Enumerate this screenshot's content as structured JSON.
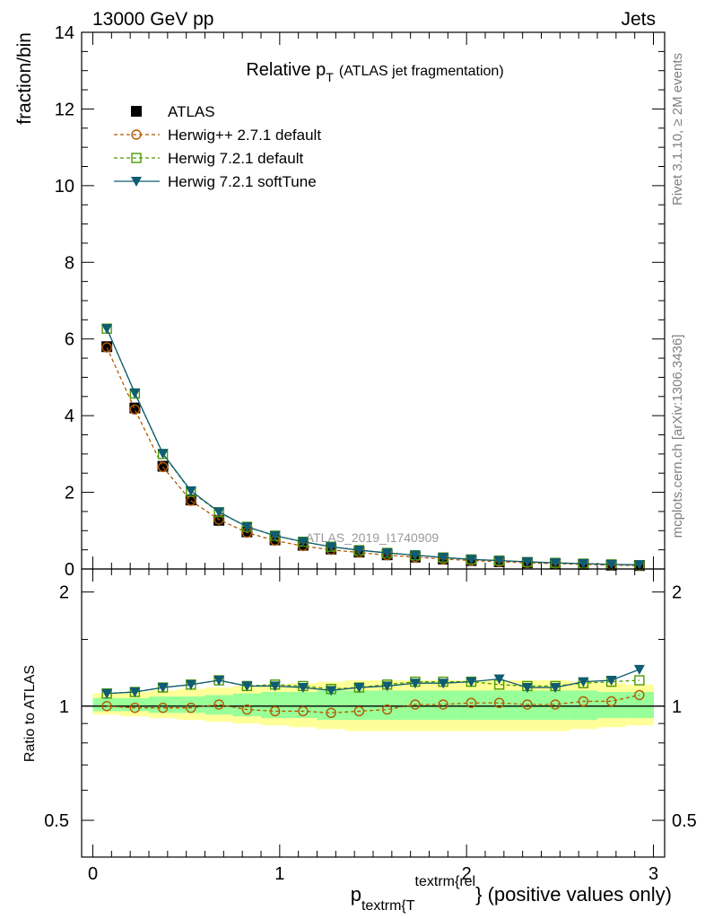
{
  "header": {
    "left": "13000 GeV pp",
    "right": "Jets"
  },
  "side_text": {
    "top": "Rivet 3.1.10, ≥ 2M events",
    "bottom": "mcplots.cern.ch [arXiv:1306.3436]"
  },
  "chart_data": [
    {
      "type": "scatter",
      "panel": "main",
      "title": "Relative p_T (ATLAS jet fragmentation)",
      "title_main": "Relative p",
      "title_sub": "T",
      "title_rest": "(ATLAS jet fragmentation)",
      "ylabel": "fraction/bin",
      "watermark": "ATLAS_2019_I1740909",
      "ylim": [
        0,
        14
      ],
      "xlim": [
        -0.06,
        3.06
      ],
      "yticks": [
        0,
        2,
        4,
        6,
        8,
        10,
        12,
        14
      ],
      "ytick_labels": [
        "0",
        "2",
        "4",
        "6",
        "8",
        "10",
        "12",
        "14"
      ],
      "legend_position": "top-left",
      "x": [
        0.075,
        0.225,
        0.375,
        0.525,
        0.675,
        0.825,
        0.975,
        1.125,
        1.275,
        1.425,
        1.575,
        1.725,
        1.875,
        2.025,
        2.175,
        2.325,
        2.475,
        2.625,
        2.775,
        2.925
      ],
      "series": [
        {
          "name": "ATLAS",
          "color": "#000000",
          "marker": "square-filled",
          "values": [
            5.8,
            4.2,
            2.68,
            1.8,
            1.27,
            0.97,
            0.76,
            0.62,
            0.52,
            0.44,
            0.37,
            0.31,
            0.26,
            0.22,
            0.19,
            0.16,
            0.14,
            0.12,
            0.1,
            0.09
          ]
        },
        {
          "name": "Herwig++ 2.7.1 default",
          "color": "#b35900",
          "marker": "circle-open",
          "dash": "4,3",
          "values": [
            5.78,
            4.16,
            2.66,
            1.78,
            1.29,
            0.95,
            0.74,
            0.6,
            0.5,
            0.43,
            0.36,
            0.31,
            0.26,
            0.22,
            0.19,
            0.16,
            0.14,
            0.12,
            0.1,
            0.09
          ]
        },
        {
          "name": "Herwig 7.2.1 default",
          "color": "#4c9900",
          "marker": "square-open",
          "dash": "4,3",
          "values": [
            6.27,
            4.58,
            3.0,
            2.02,
            1.48,
            1.1,
            0.87,
            0.71,
            0.58,
            0.49,
            0.42,
            0.36,
            0.3,
            0.25,
            0.22,
            0.18,
            0.16,
            0.14,
            0.12,
            0.1
          ]
        },
        {
          "name": "Herwig 7.2.1 softTune",
          "color": "#0f5c73",
          "marker": "triangle-down-filled",
          "values": [
            6.27,
            4.59,
            3.01,
            2.04,
            1.49,
            1.1,
            0.87,
            0.71,
            0.58,
            0.49,
            0.42,
            0.36,
            0.3,
            0.25,
            0.22,
            0.19,
            0.16,
            0.14,
            0.12,
            0.11
          ]
        }
      ]
    },
    {
      "type": "scatter",
      "panel": "ratio",
      "ylabel": "Ratio to ATLAS",
      "xlabel_main": "p",
      "xlabel_sub": "textrm{T",
      "xlabel_sup": "textrm{rel",
      "xlabel_rest": "} (positive values only)",
      "ylim": [
        0.4,
        2.3
      ],
      "xlim": [
        -0.06,
        3.06
      ],
      "yticks": [
        0.5,
        1,
        2
      ],
      "ytick_labels": [
        "0.5",
        "1",
        "2"
      ],
      "xticks": [
        0,
        1,
        2,
        3
      ],
      "xtick_labels": [
        "0",
        "1",
        "2",
        "3"
      ],
      "x_edges": [
        0.0,
        0.15,
        0.3,
        0.45,
        0.6,
        0.75,
        0.9,
        1.05,
        1.2,
        1.35,
        1.5,
        1.65,
        1.8,
        1.95,
        2.1,
        2.25,
        2.4,
        2.55,
        2.7,
        2.85,
        3.0
      ],
      "bands": {
        "yellow_color": "#ffff99",
        "green_color": "#99ff99",
        "yellow_low": [
          0.95,
          0.94,
          0.93,
          0.92,
          0.91,
          0.9,
          0.89,
          0.88,
          0.87,
          0.86,
          0.86,
          0.86,
          0.86,
          0.86,
          0.86,
          0.86,
          0.86,
          0.87,
          0.88,
          0.89
        ],
        "yellow_high": [
          1.08,
          1.09,
          1.1,
          1.11,
          1.12,
          1.13,
          1.14,
          1.15,
          1.16,
          1.17,
          1.17,
          1.17,
          1.17,
          1.17,
          1.17,
          1.17,
          1.17,
          1.16,
          1.15,
          1.14
        ],
        "green_low": [
          0.97,
          0.97,
          0.96,
          0.96,
          0.95,
          0.94,
          0.93,
          0.93,
          0.92,
          0.92,
          0.92,
          0.92,
          0.92,
          0.92,
          0.92,
          0.92,
          0.92,
          0.92,
          0.93,
          0.93
        ],
        "green_high": [
          1.05,
          1.05,
          1.06,
          1.06,
          1.07,
          1.08,
          1.09,
          1.09,
          1.1,
          1.1,
          1.1,
          1.1,
          1.1,
          1.1,
          1.1,
          1.1,
          1.1,
          1.1,
          1.09,
          1.09
        ]
      },
      "series": [
        {
          "name": "Herwig++ 2.7.1 default",
          "color": "#b35900",
          "marker": "circle-open",
          "dash": "4,3",
          "values": [
            1.0,
            0.99,
            0.99,
            0.99,
            1.01,
            0.98,
            0.97,
            0.97,
            0.96,
            0.97,
            0.98,
            1.01,
            1.01,
            1.02,
            1.02,
            1.01,
            1.01,
            1.03,
            1.03,
            1.07
          ]
        },
        {
          "name": "Herwig 7.2.1 default",
          "color": "#4c9900",
          "marker": "square-open",
          "dash": "4,3",
          "values": [
            1.08,
            1.09,
            1.12,
            1.14,
            1.17,
            1.13,
            1.14,
            1.13,
            1.11,
            1.12,
            1.14,
            1.16,
            1.16,
            1.16,
            1.14,
            1.13,
            1.13,
            1.15,
            1.16,
            1.17
          ]
        },
        {
          "name": "Herwig 7.2.1 softTune",
          "color": "#0f5c73",
          "marker": "triangle-down-filled",
          "values": [
            1.08,
            1.09,
            1.12,
            1.14,
            1.17,
            1.13,
            1.13,
            1.12,
            1.1,
            1.12,
            1.13,
            1.15,
            1.15,
            1.16,
            1.18,
            1.12,
            1.12,
            1.16,
            1.17,
            1.25
          ]
        }
      ]
    }
  ]
}
